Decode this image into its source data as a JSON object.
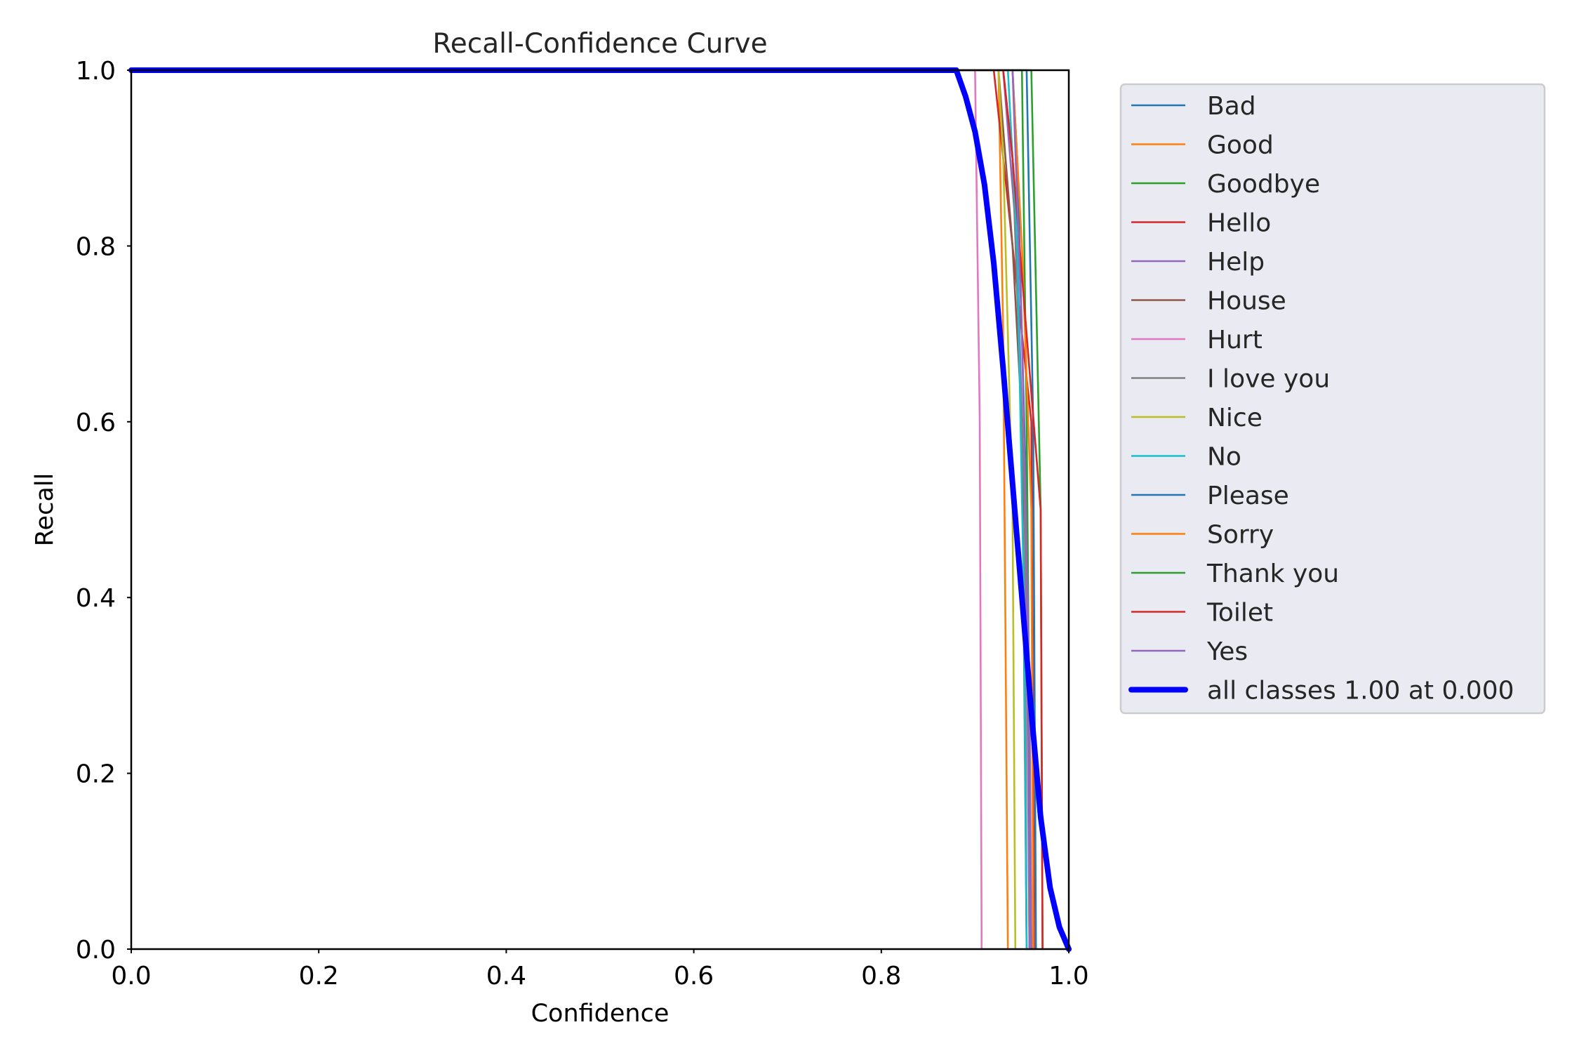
{
  "chart_data": {
    "type": "line",
    "title": "Recall-Confidence Curve",
    "xlabel": "Confidence",
    "ylabel": "Recall",
    "xlim": [
      0,
      1
    ],
    "ylim": [
      0,
      1
    ],
    "xticks": [
      "0.0",
      "0.2",
      "0.4",
      "0.6",
      "0.8",
      "1.0"
    ],
    "yticks": [
      "0.0",
      "0.2",
      "0.4",
      "0.6",
      "0.8",
      "1.0"
    ],
    "grid": false,
    "legend_position": "outside-right",
    "series": [
      {
        "name": "Bad",
        "color": "#1f77b4",
        "points": [
          [
            0,
            1
          ],
          [
            0.94,
            1
          ],
          [
            0.945,
            0.9
          ],
          [
            0.955,
            0.5
          ],
          [
            0.958,
            0
          ]
        ]
      },
      {
        "name": "Good",
        "color": "#ff7f0e",
        "points": [
          [
            0,
            1
          ],
          [
            0.91,
            1
          ],
          [
            0.925,
            1
          ],
          [
            0.93,
            0.7
          ],
          [
            0.935,
            0
          ]
        ]
      },
      {
        "name": "Goodbye",
        "color": "#2ca02c",
        "points": [
          [
            0,
            1
          ],
          [
            0.95,
            1
          ],
          [
            0.955,
            0.6
          ],
          [
            0.96,
            0
          ]
        ]
      },
      {
        "name": "Hello",
        "color": "#d62728",
        "points": [
          [
            0,
            1
          ],
          [
            0.92,
            1
          ],
          [
            0.93,
            0.9
          ],
          [
            0.96,
            0.6
          ],
          [
            0.963,
            0
          ]
        ]
      },
      {
        "name": "Help",
        "color": "#9467bd",
        "points": [
          [
            0,
            1
          ],
          [
            0.93,
            1
          ],
          [
            0.945,
            0.8
          ],
          [
            0.955,
            0.4
          ],
          [
            0.958,
            0
          ]
        ]
      },
      {
        "name": "House",
        "color": "#8c564b",
        "points": [
          [
            0,
            1
          ],
          [
            0.925,
            1
          ],
          [
            0.94,
            0.8
          ],
          [
            0.95,
            0.6
          ],
          [
            0.955,
            0
          ]
        ]
      },
      {
        "name": "Hurt",
        "color": "#e377c2",
        "points": [
          [
            0,
            1
          ],
          [
            0.9,
            1
          ],
          [
            0.905,
            0.6
          ],
          [
            0.907,
            0
          ]
        ]
      },
      {
        "name": "I love you",
        "color": "#7f7f7f",
        "points": [
          [
            0,
            1
          ],
          [
            0.93,
            1
          ],
          [
            0.94,
            0.9
          ],
          [
            0.953,
            0.5
          ],
          [
            0.955,
            0
          ]
        ]
      },
      {
        "name": "Nice",
        "color": "#bcbd22",
        "points": [
          [
            0,
            1
          ],
          [
            0.925,
            1
          ],
          [
            0.93,
            0.9
          ],
          [
            0.94,
            0.5
          ],
          [
            0.943,
            0
          ]
        ]
      },
      {
        "name": "No",
        "color": "#17becf",
        "points": [
          [
            0,
            1
          ],
          [
            0.935,
            1
          ],
          [
            0.945,
            0.8
          ],
          [
            0.952,
            0.4
          ],
          [
            0.955,
            0
          ]
        ]
      },
      {
        "name": "Please",
        "color": "#1f77b4",
        "points": [
          [
            0,
            1
          ],
          [
            0.955,
            1
          ],
          [
            0.962,
            0.6
          ],
          [
            0.965,
            0
          ]
        ]
      },
      {
        "name": "Sorry",
        "color": "#ff7f0e",
        "points": [
          [
            0,
            1
          ],
          [
            0.94,
            1
          ],
          [
            0.95,
            0.8
          ],
          [
            0.96,
            0.5
          ],
          [
            0.962,
            0
          ]
        ]
      },
      {
        "name": "Thank you",
        "color": "#2ca02c",
        "points": [
          [
            0,
            1
          ],
          [
            0.96,
            1
          ],
          [
            0.97,
            0.5
          ],
          [
            0.972,
            0
          ]
        ]
      },
      {
        "name": "Toilet",
        "color": "#d62728",
        "points": [
          [
            0,
            1
          ],
          [
            0.93,
            1
          ],
          [
            0.94,
            0.9
          ],
          [
            0.97,
            0.5
          ],
          [
            0.972,
            0
          ]
        ]
      },
      {
        "name": "Yes",
        "color": "#9467bd",
        "points": [
          [
            0,
            1
          ],
          [
            0.94,
            1
          ],
          [
            0.95,
            0.7
          ],
          [
            0.958,
            0.3
          ],
          [
            0.96,
            0
          ]
        ]
      },
      {
        "name": "all classes 1.00 at 0.000",
        "color": "#0000ff",
        "bold": true,
        "points": [
          [
            0,
            1
          ],
          [
            0.88,
            1
          ],
          [
            0.89,
            0.97
          ],
          [
            0.9,
            0.93
          ],
          [
            0.91,
            0.87
          ],
          [
            0.92,
            0.78
          ],
          [
            0.93,
            0.66
          ],
          [
            0.94,
            0.53
          ],
          [
            0.95,
            0.4
          ],
          [
            0.96,
            0.27
          ],
          [
            0.97,
            0.15
          ],
          [
            0.98,
            0.07
          ],
          [
            0.99,
            0.025
          ],
          [
            1.0,
            0
          ]
        ]
      }
    ]
  }
}
